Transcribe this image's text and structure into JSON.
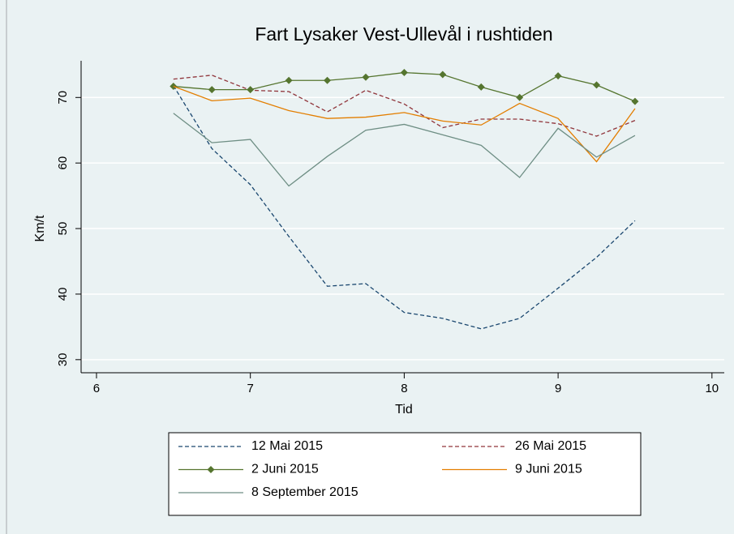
{
  "chart_data": {
    "type": "line",
    "title": "Fart Lysaker Vest-Ullevål i rushtiden",
    "x_label": "Tid",
    "y_label": "Km/t",
    "x": [
      6.5,
      6.75,
      7,
      7.25,
      7.5,
      7.75,
      8,
      8.25,
      8.5,
      8.75,
      9,
      9.25,
      9.5
    ],
    "xlim": [
      5.9,
      10.08
    ],
    "xticks": [
      6,
      7,
      8,
      9,
      10
    ],
    "ylim": [
      28,
      75.6
    ],
    "yticks": [
      30,
      40,
      50,
      60,
      70
    ],
    "grid": true,
    "legend": "bottom",
    "series": [
      {
        "name": "12 Mai 2015",
        "color": "#1a476f",
        "style": "dash",
        "values": [
          71.8,
          62.2,
          56.7,
          48.8,
          41.2,
          41.6,
          37.2,
          36.3,
          34.7,
          36.3,
          40.9,
          45.6,
          51.2
        ]
      },
      {
        "name": "26 Mai 2015",
        "color": "#90353b",
        "style": "dash",
        "values": [
          72.8,
          73.4,
          71.1,
          70.9,
          67.8,
          71.1,
          69.0,
          65.4,
          66.7,
          66.7,
          66.0,
          64.1,
          66.5
        ]
      },
      {
        "name": "2 Juni 2015",
        "color": "#55752f",
        "style": "solid",
        "marker": "diamond",
        "values": [
          71.7,
          71.2,
          71.2,
          72.6,
          72.6,
          73.1,
          73.8,
          73.5,
          71.6,
          70.0,
          73.3,
          71.9,
          69.4
        ]
      },
      {
        "name": "9 Juni 2015",
        "color": "#e37e00",
        "style": "solid",
        "values": [
          71.7,
          69.5,
          69.9,
          68.0,
          66.8,
          67.0,
          67.7,
          66.4,
          65.8,
          69.1,
          66.8,
          60.2,
          68.3
        ]
      },
      {
        "name": "8 September 2015",
        "color": "#6e8e84",
        "style": "solid",
        "values": [
          67.6,
          63.1,
          63.6,
          56.5,
          61.0,
          65.0,
          65.9,
          64.3,
          62.7,
          57.8,
          65.3,
          60.9,
          64.2
        ]
      }
    ]
  }
}
